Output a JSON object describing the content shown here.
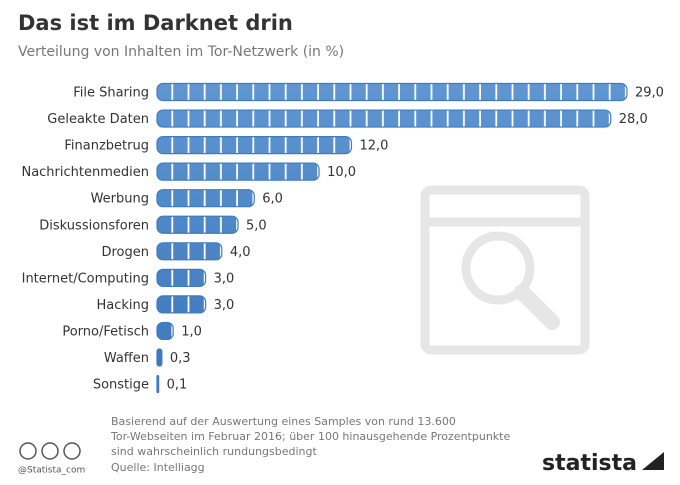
{
  "chart_data": {
    "type": "bar",
    "orientation": "horizontal",
    "title": "Das ist im Darknet drin",
    "subtitle": "Verteilung von Inhalten im Tor-Netzwerk (in %)",
    "categories": [
      "File Sharing",
      "Geleakte Daten",
      "Finanzbetrug",
      "Nachrichtenmedien",
      "Werbung",
      "Diskussionsforen",
      "Drogen",
      "Internet/Computing",
      "Hacking",
      "Porno/Fetisch",
      "Waffen",
      "Sonstige"
    ],
    "values": [
      29,
      28,
      12,
      10,
      6,
      5,
      4,
      3,
      3,
      1,
      0.3,
      0.1
    ],
    "value_labels": [
      "29,0",
      "28,0",
      "12,0",
      "10,0",
      "6,0",
      "5,0",
      "4,0",
      "3,0",
      "3,0",
      "1,0",
      "0,3",
      "0,1"
    ],
    "color": "#3d7cc4",
    "notes": [
      "Basierend auf der Auswertung eines Samples von rund 13.600",
      "Tor-Webseiten im Februar 2016; über 100 hinausgehende Prozentpunkte",
      "sind wahrscheinlich rundungsbedingt"
    ],
    "source": "Quelle: Intelliagg",
    "credit": "@Statista_com",
    "brand": "statista"
  }
}
